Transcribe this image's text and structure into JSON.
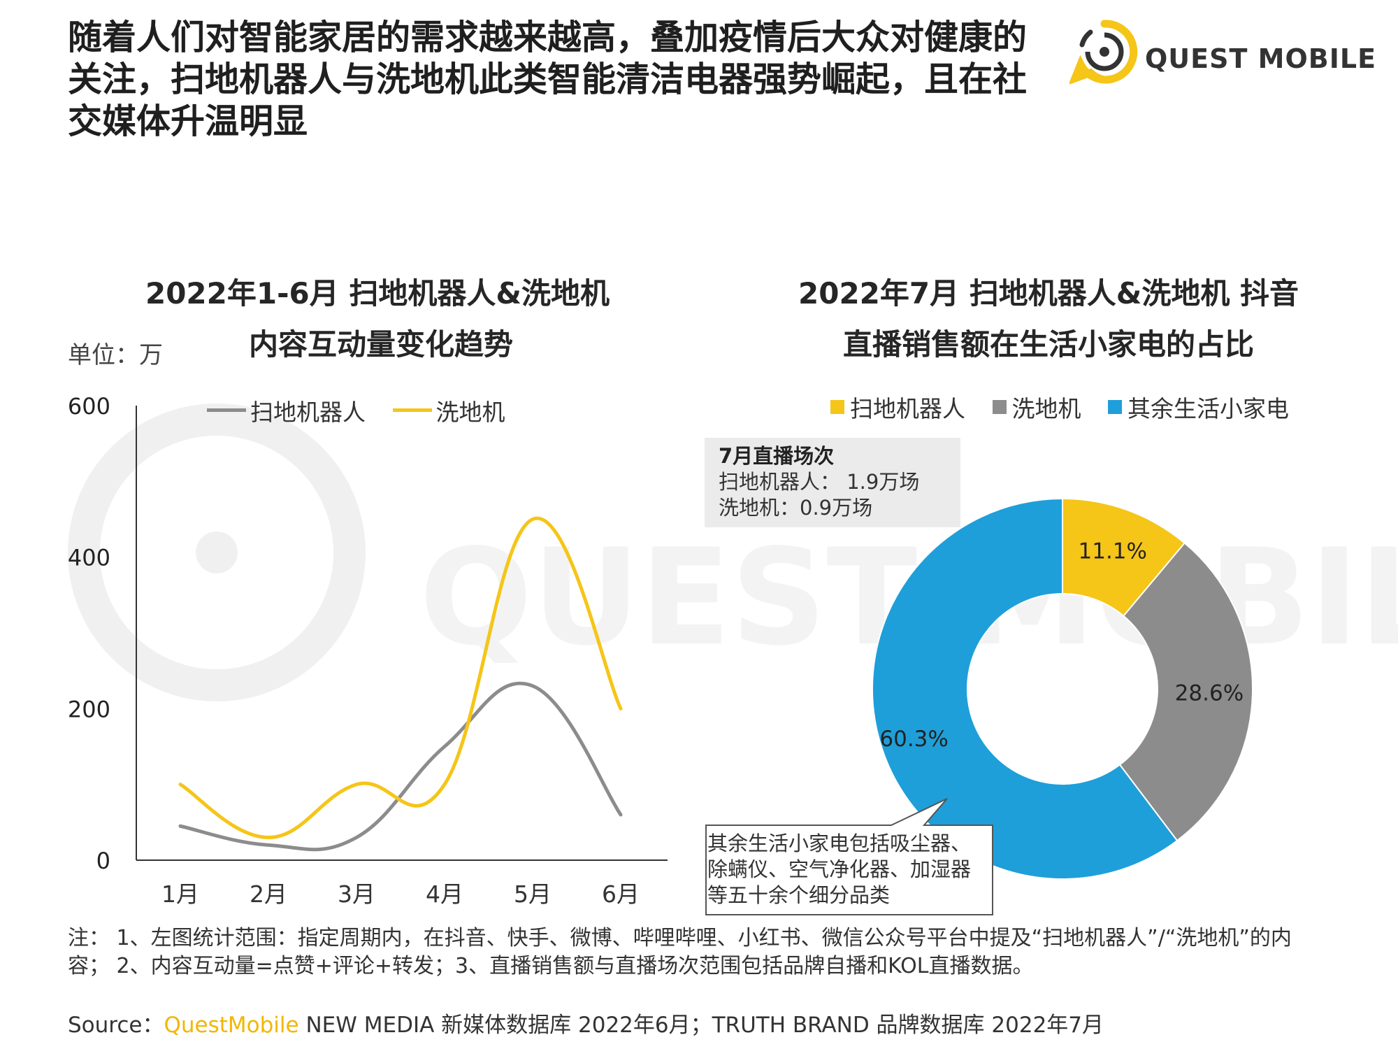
{
  "headline": "随着人们对智能家居的需求越来越高，叠加疫情后大众对健康的关注，扫地机器人与洗地机此类智能清洁电器强势崛起，且在社交媒体升温明显",
  "logo": {
    "text": "QUEST MOBILE",
    "watermark_text": "QUEST MOBILE"
  },
  "left_chart": {
    "title_line1": "2022年1-6月 扫地机器人&洗地机",
    "title_line2": "内容互动量变化趋势",
    "unit": "单位：万"
  },
  "right_chart": {
    "title_line1": "2022年7月 扫地机器人&洗地机 抖音",
    "title_line2": "直播销售额在生活小家电的占比"
  },
  "info_box": {
    "title": "7月直播场次",
    "line1": "扫地机器人： 1.9万场",
    "line2": "洗地机：0.9万场"
  },
  "callout": {
    "text": "其余生活小家电包括吸尘器、除螨仪、空气净化器、加湿器等五十余个细分品类"
  },
  "note": "注： 1、左图统计范围：指定周期内，在抖音、快手、微博、哔哩哔哩、小红书、微信公众号平台中提及“扫地机器人”/“洗地机”的内容； 2、内容互动量=点赞+评论+转发；3、直播销售额与直播场次范围包括品牌自播和KOL直播数据。",
  "source": {
    "prefix": "Source：",
    "brand": "QuestMobile",
    "rest": " NEW MEDIA 新媒体数据库 2022年6月；TRUTH BRAND 品牌数据库 2022年7月"
  },
  "colors": {
    "yellow": "#F5C518",
    "gray": "#8C8C8C",
    "blue": "#1E9FD9",
    "axis": "#333333"
  },
  "chart_data": [
    {
      "type": "line",
      "categories": [
        "1月",
        "2月",
        "3月",
        "4月",
        "5月",
        "6月"
      ],
      "series": [
        {
          "name": "扫地机器人",
          "color": "#8C8C8C",
          "values": [
            45,
            20,
            30,
            150,
            230,
            60
          ]
        },
        {
          "name": "洗地机",
          "color": "#F5C518",
          "values": [
            100,
            30,
            100,
            100,
            450,
            200
          ]
        }
      ],
      "yticks": [
        0,
        200,
        400,
        600
      ],
      "ylim": [
        0,
        600
      ],
      "legend_position": "top",
      "grid": false
    },
    {
      "type": "pie",
      "donut": true,
      "labels": [
        "扫地机器人",
        "洗地机",
        "其余生活小家电"
      ],
      "values": [
        11.1,
        28.6,
        60.3
      ],
      "value_labels": [
        "11.1%",
        "28.6%",
        "60.3%"
      ],
      "colors": [
        "#F5C518",
        "#8C8C8C",
        "#1E9FD9"
      ],
      "legend_position": "top"
    }
  ]
}
